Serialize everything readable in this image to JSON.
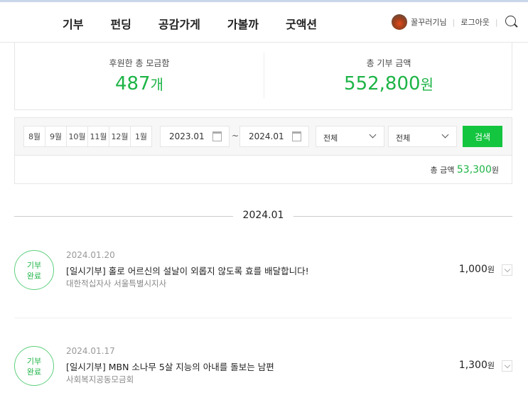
{
  "nav": {
    "items": [
      "기부",
      "펀딩",
      "공감가게",
      "가볼까",
      "굿액션"
    ]
  },
  "user": {
    "name": "꿀꾸러기님",
    "logout": "로그아웃"
  },
  "summary": {
    "count_label": "후원한 총 모금함",
    "count": "487",
    "count_unit": "개",
    "amount_label": "총 기부 금액",
    "amount": "552,800",
    "amount_unit": "원"
  },
  "filter": {
    "months": [
      "8월",
      "9월",
      "10월",
      "11월",
      "12월",
      "1월"
    ],
    "start_date": "2023.01",
    "tilde": "~",
    "end_date": "2024.01",
    "select1": "전체",
    "select2": "전체",
    "search": "검색",
    "total_label": "총 금액",
    "total_amount": "53,300",
    "total_unit": "원"
  },
  "colors": {
    "accent": "#14c53f",
    "text_green": "#1db446"
  },
  "section": {
    "month": "2024.01"
  },
  "items": [
    {
      "badge1": "기부",
      "badge2": "완료",
      "date": "2024.01.20",
      "title": "[일시기부] 홀로 어르신의 설날이 외롭지 않도록 효를 배달합니다!",
      "org": "대한적십자사 서울특별시지사",
      "amount": "1,000",
      "unit": "원"
    },
    {
      "badge1": "기부",
      "badge2": "완료",
      "date": "2024.01.17",
      "title": "[일시기부] MBN 소나무 5살 지능의 아내를 돌보는 남편",
      "org": "사회복지공동모금회",
      "unit": "원",
      "amount": "1,300"
    }
  ]
}
